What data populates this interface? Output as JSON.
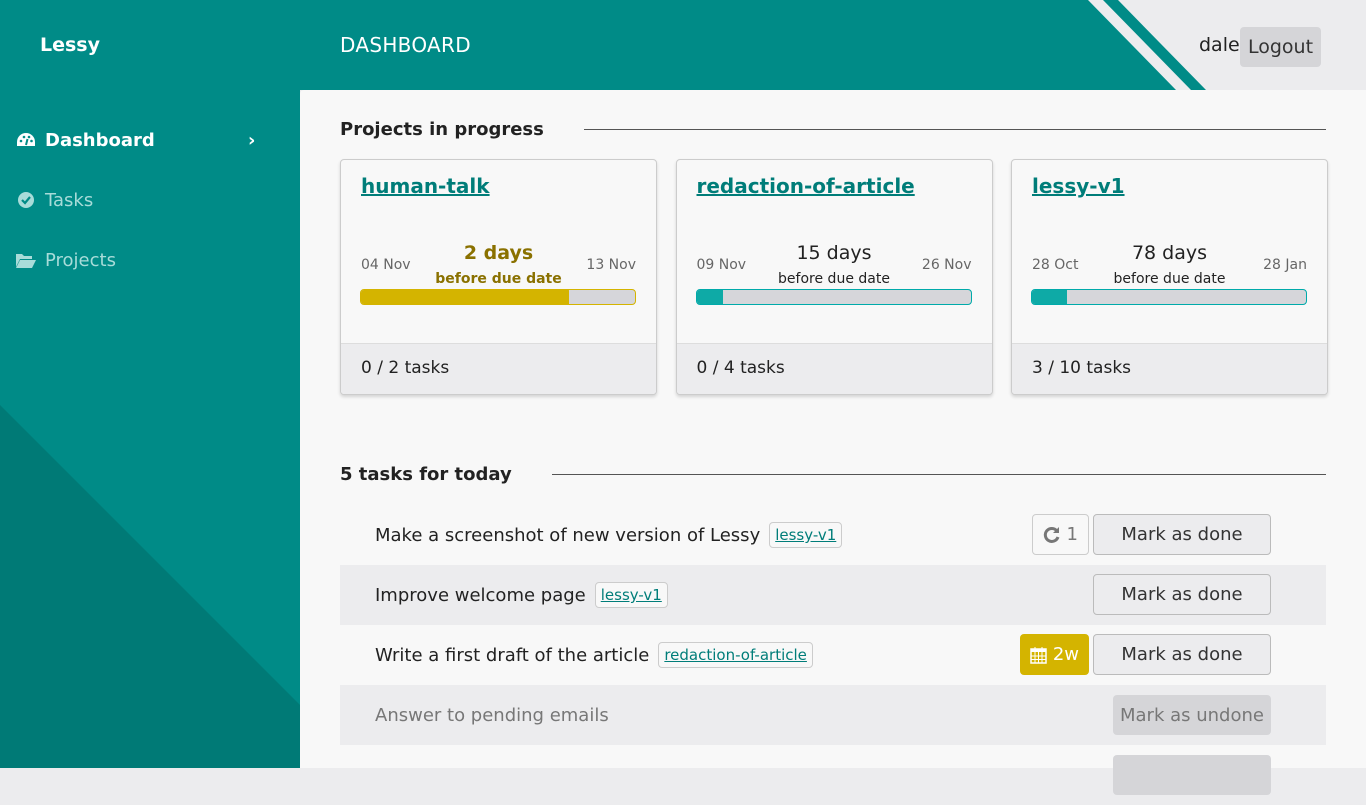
{
  "app": {
    "brand": "Lessy",
    "page_title": "DASHBOARD",
    "user": "dale",
    "logout_label": "Logout"
  },
  "sidebar": {
    "items": [
      {
        "label": "Dashboard",
        "icon": "tachometer-icon",
        "active": true
      },
      {
        "label": "Tasks",
        "icon": "check-circle-icon"
      },
      {
        "label": "Projects",
        "icon": "folder-open-icon"
      }
    ]
  },
  "colors": {
    "brand": "#008b87",
    "warning": "#d4b400",
    "progress": "#0eaaa6"
  },
  "projects": {
    "title": "Projects in progress",
    "items": [
      {
        "name": "human-talk",
        "start": "04 Nov",
        "end": "13 Nov",
        "days": "2 days",
        "before": "before due date",
        "progress": 0.78,
        "tasks": "0 / 2 tasks",
        "warning": true
      },
      {
        "name": "redaction-of-article",
        "start": "09 Nov",
        "end": "26 Nov",
        "days": "15 days",
        "before": "before due date",
        "progress": 0.12,
        "tasks": "0 / 4 tasks"
      },
      {
        "name": "lessy-v1",
        "start": "28 Oct",
        "end": "28 Jan",
        "days": "78 days",
        "before": "before due date",
        "progress": 0.15,
        "tasks": "3 / 10 tasks"
      }
    ]
  },
  "tasks": {
    "title": "5 tasks for today",
    "items": [
      {
        "label": "Make a screenshot of new version of Lessy",
        "project": "lessy-v1",
        "repeat": "1",
        "button": "Mark as done"
      },
      {
        "label": "Improve welcome page",
        "project": "lessy-v1",
        "button": "Mark as done"
      },
      {
        "label": "Write a first draft of the article",
        "project": "redaction-of-article",
        "due": "2w",
        "button": "Mark as done"
      },
      {
        "label": "Answer to pending emails",
        "button": "Mark as undone"
      }
    ]
  }
}
